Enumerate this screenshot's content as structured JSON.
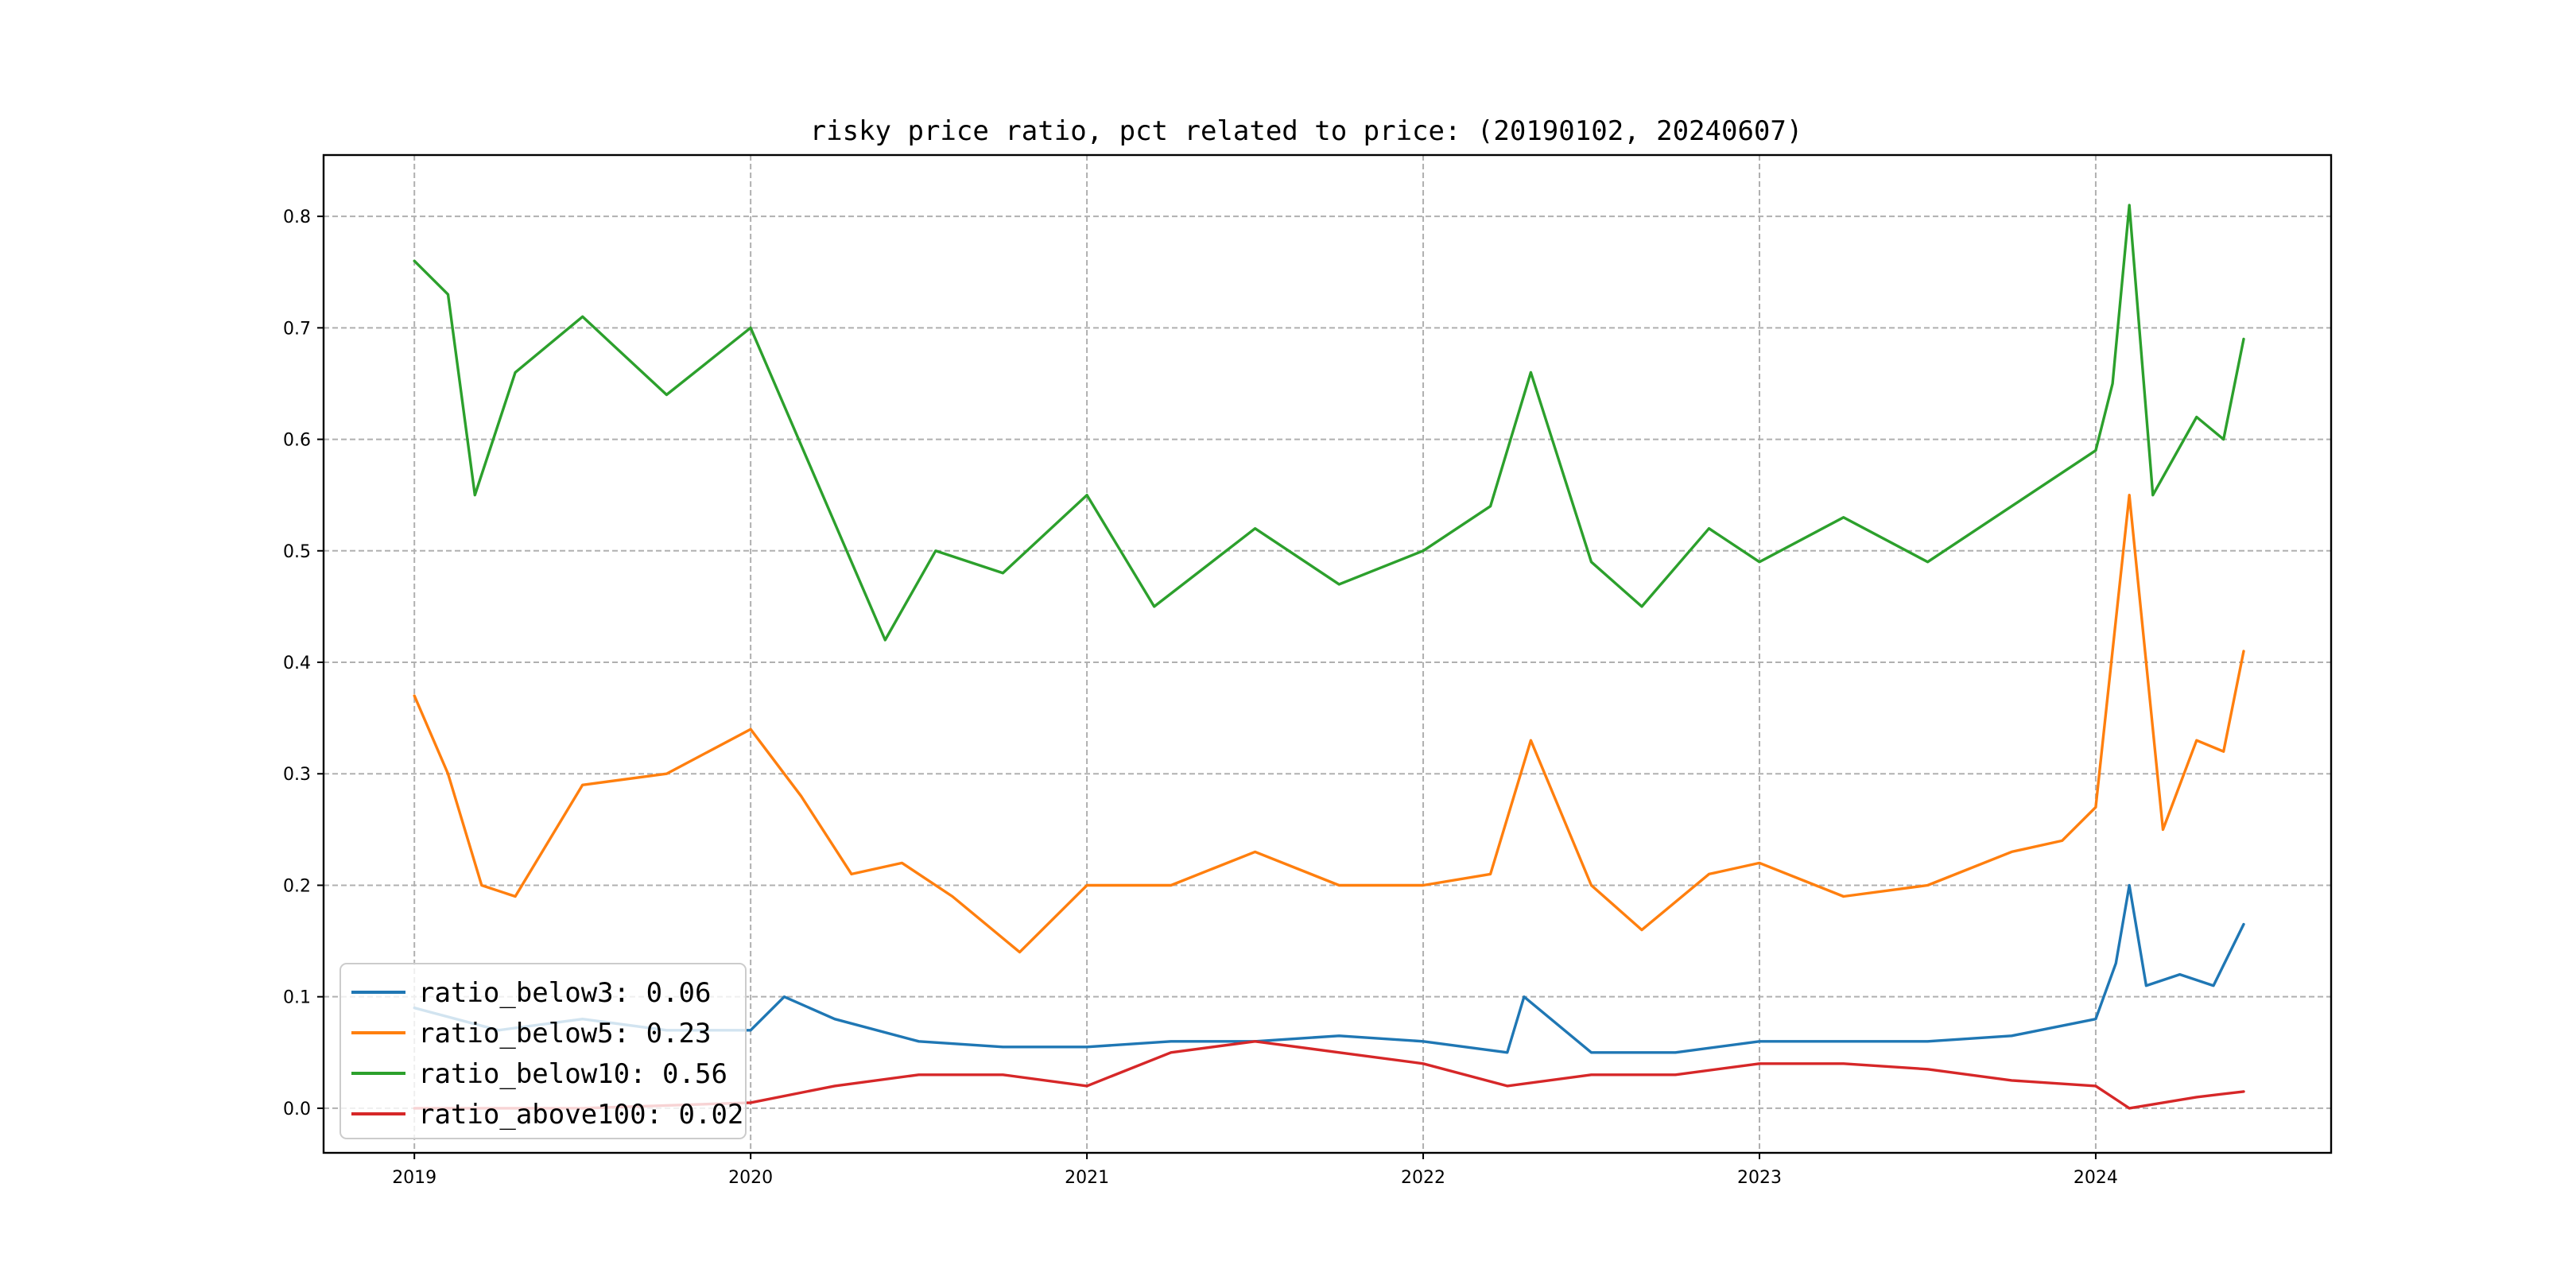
{
  "chart_data": {
    "type": "line",
    "title": "risky price ratio, pct related to price: (20190102, 20240607)",
    "xlabel": "",
    "ylabel": "",
    "x_range": [
      "20190102",
      "20240607"
    ],
    "xlim": [
      2018.73,
      2024.7
    ],
    "ylim": [
      -0.04,
      0.855
    ],
    "x_ticks": [
      {
        "value": 2019,
        "label": "2019"
      },
      {
        "value": 2020,
        "label": "2020"
      },
      {
        "value": 2021,
        "label": "2021"
      },
      {
        "value": 2022,
        "label": "2022"
      },
      {
        "value": 2023,
        "label": "2023"
      },
      {
        "value": 2024,
        "label": "2024"
      }
    ],
    "y_ticks": [
      {
        "value": 0.0,
        "label": "0.0"
      },
      {
        "value": 0.1,
        "label": "0.1"
      },
      {
        "value": 0.2,
        "label": "0.2"
      },
      {
        "value": 0.3,
        "label": "0.3"
      },
      {
        "value": 0.4,
        "label": "0.4"
      },
      {
        "value": 0.5,
        "label": "0.5"
      },
      {
        "value": 0.6,
        "label": "0.6"
      },
      {
        "value": 0.7,
        "label": "0.7"
      },
      {
        "value": 0.8,
        "label": "0.8"
      }
    ],
    "grid": true,
    "legend_position": "lower-left",
    "series": [
      {
        "name": "ratio_below3",
        "legend_label": "ratio_below3: 0.06",
        "color": "#1f77b4",
        "x": [
          2019.0,
          2019.25,
          2019.5,
          2019.75,
          2020.0,
          2020.1,
          2020.25,
          2020.5,
          2020.75,
          2021.0,
          2021.25,
          2021.5,
          2021.75,
          2022.0,
          2022.25,
          2022.3,
          2022.5,
          2022.75,
          2023.0,
          2023.25,
          2023.5,
          2023.75,
          2024.0,
          2024.06,
          2024.1,
          2024.15,
          2024.25,
          2024.35,
          2024.44
        ],
        "y": [
          0.09,
          0.07,
          0.08,
          0.07,
          0.07,
          0.1,
          0.08,
          0.06,
          0.055,
          0.055,
          0.06,
          0.06,
          0.065,
          0.06,
          0.05,
          0.1,
          0.05,
          0.05,
          0.06,
          0.06,
          0.06,
          0.065,
          0.08,
          0.13,
          0.2,
          0.11,
          0.12,
          0.11,
          0.165
        ]
      },
      {
        "name": "ratio_below5",
        "legend_label": "ratio_below5: 0.23",
        "color": "#ff7f0e",
        "x": [
          2019.0,
          2019.1,
          2019.2,
          2019.3,
          2019.5,
          2019.75,
          2020.0,
          2020.15,
          2020.3,
          2020.45,
          2020.6,
          2020.8,
          2021.0,
          2021.25,
          2021.5,
          2021.75,
          2022.0,
          2022.2,
          2022.32,
          2022.5,
          2022.65,
          2022.85,
          2023.0,
          2023.25,
          2023.5,
          2023.75,
          2023.9,
          2024.0,
          2024.1,
          2024.2,
          2024.3,
          2024.38,
          2024.44
        ],
        "y": [
          0.37,
          0.3,
          0.2,
          0.19,
          0.29,
          0.3,
          0.34,
          0.28,
          0.21,
          0.22,
          0.19,
          0.14,
          0.2,
          0.2,
          0.23,
          0.2,
          0.2,
          0.21,
          0.33,
          0.2,
          0.16,
          0.21,
          0.22,
          0.19,
          0.2,
          0.23,
          0.24,
          0.27,
          0.55,
          0.25,
          0.33,
          0.32,
          0.41
        ]
      },
      {
        "name": "ratio_below10",
        "legend_label": "ratio_below10: 0.56",
        "color": "#2ca02c",
        "x": [
          2019.0,
          2019.1,
          2019.18,
          2019.3,
          2019.5,
          2019.75,
          2020.0,
          2020.2,
          2020.4,
          2020.55,
          2020.75,
          2021.0,
          2021.2,
          2021.5,
          2021.75,
          2022.0,
          2022.2,
          2022.32,
          2022.5,
          2022.65,
          2022.85,
          2023.0,
          2023.25,
          2023.5,
          2023.75,
          2024.0,
          2024.05,
          2024.1,
          2024.17,
          2024.3,
          2024.38,
          2024.44
        ],
        "y": [
          0.76,
          0.73,
          0.55,
          0.66,
          0.71,
          0.64,
          0.7,
          0.56,
          0.42,
          0.5,
          0.48,
          0.55,
          0.45,
          0.52,
          0.47,
          0.5,
          0.54,
          0.66,
          0.49,
          0.45,
          0.52,
          0.49,
          0.53,
          0.49,
          0.54,
          0.59,
          0.65,
          0.81,
          0.55,
          0.62,
          0.6,
          0.69
        ]
      },
      {
        "name": "ratio_above100",
        "legend_label": "ratio_above100: 0.02",
        "color": "#d62728",
        "x": [
          2019.0,
          2019.5,
          2020.0,
          2020.25,
          2020.5,
          2020.75,
          2021.0,
          2021.25,
          2021.5,
          2021.75,
          2022.0,
          2022.25,
          2022.5,
          2022.75,
          2023.0,
          2023.25,
          2023.5,
          2023.75,
          2024.0,
          2024.1,
          2024.2,
          2024.3,
          2024.44
        ],
        "y": [
          0.0,
          0.0,
          0.005,
          0.02,
          0.03,
          0.03,
          0.02,
          0.05,
          0.06,
          0.05,
          0.04,
          0.02,
          0.03,
          0.03,
          0.04,
          0.04,
          0.035,
          0.025,
          0.02,
          0.0,
          0.005,
          0.01,
          0.015
        ]
      }
    ]
  }
}
